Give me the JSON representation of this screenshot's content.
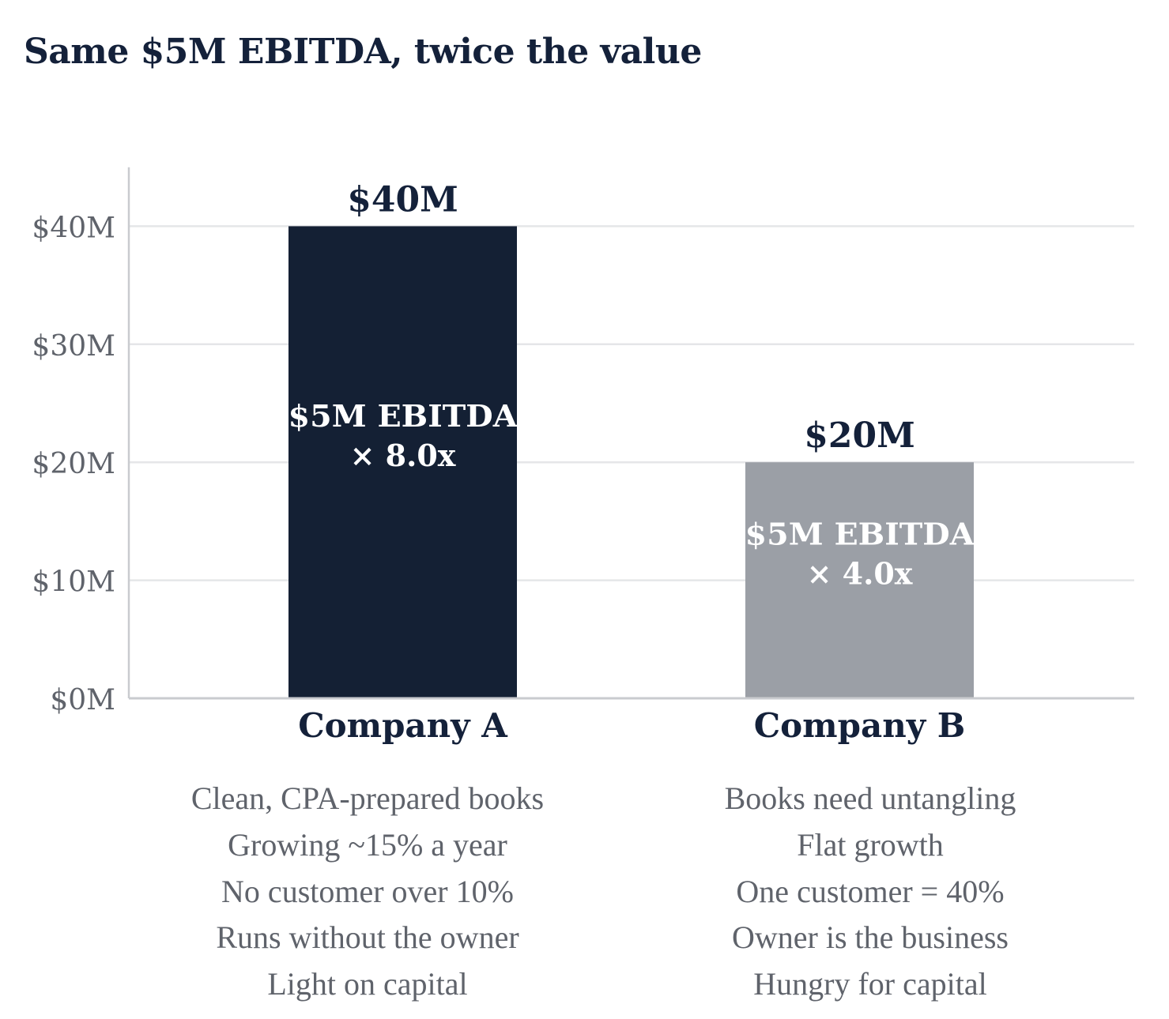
{
  "title": "Same $5M EBITDA, twice the value",
  "chart_data": {
    "type": "bar",
    "categories": [
      "Company A",
      "Company B"
    ],
    "values": [
      40,
      20
    ],
    "unit": "$M",
    "value_labels": [
      "$40M",
      "$20M"
    ],
    "inner_labels": [
      [
        "$5M EBITDA",
        "× 8.0x"
      ],
      [
        "$5M EBITDA",
        "× 4.0x"
      ]
    ],
    "ebitda": [
      5,
      5
    ],
    "multiples": [
      8.0,
      4.0
    ],
    "yticks": [
      0,
      10,
      20,
      30,
      40
    ],
    "ytick_labels": [
      "$0M",
      "$10M",
      "$20M",
      "$30M",
      "$40M"
    ],
    "ylim": [
      0,
      45
    ],
    "grid": true,
    "colors": {
      "bars": [
        "#142034",
        "#9b9fa6"
      ],
      "bar_value_text": "#14213a",
      "inner_text": "#ffffff",
      "category_text": "#14213a",
      "tick_text": "#5f636b",
      "grid": "#e5e6e8",
      "axis": "#c9cbcf"
    }
  },
  "notes": {
    "company_a": [
      "Clean, CPA-prepared books",
      "Growing ~15% a year",
      "No customer over 10%",
      "Runs without the owner",
      "Light on capital"
    ],
    "company_b": [
      "Books need untangling",
      "Flat growth",
      "One customer = 40%",
      "Owner is the business",
      "Hungry for capital"
    ]
  }
}
